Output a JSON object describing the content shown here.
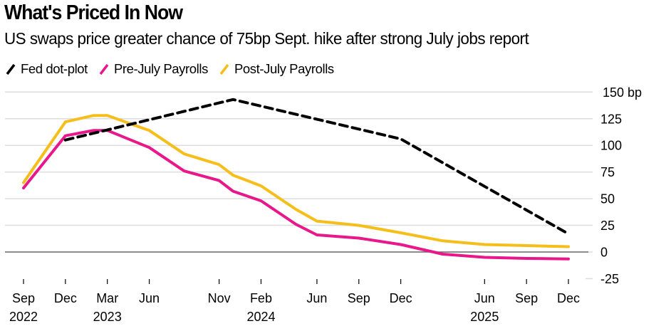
{
  "header": {
    "title": "What's Priced In Now",
    "subtitle": "US swaps price greater chance of 75bp Sept. hike after strong July jobs report"
  },
  "colors": {
    "fed": "#000000",
    "pre": "#E8178A",
    "post": "#F5BE1A",
    "grid": "#DDDDDD",
    "zero": "#666666"
  },
  "chart_data": {
    "type": "line",
    "title": "What's Priced In Now",
    "subtitle": "US swaps price greater chance of 75bp Sept. hike after strong July jobs report",
    "xlabel": "",
    "ylabel": "bp",
    "ylim": [
      -25,
      150
    ],
    "yticks": [
      -25,
      0,
      25,
      50,
      75,
      100,
      125,
      150
    ],
    "ytick_labels": [
      "-25",
      "0",
      "25",
      "50",
      "75",
      "100",
      "125",
      "150 bp"
    ],
    "y_axis_position": "right",
    "grid": true,
    "legend_position": "top-left",
    "x_start": "2022-09",
    "xlim_months": [
      0,
      39
    ],
    "xticks": [
      {
        "month": 0,
        "label": "Sep",
        "year": "2022"
      },
      {
        "month": 3,
        "label": "Dec",
        "year": ""
      },
      {
        "month": 6,
        "label": "Mar",
        "year": "2023"
      },
      {
        "month": 9,
        "label": "Jun",
        "year": ""
      },
      {
        "month": 14,
        "label": "Nov",
        "year": ""
      },
      {
        "month": 17,
        "label": "Feb",
        "year": "2024"
      },
      {
        "month": 21,
        "label": "Jun",
        "year": ""
      },
      {
        "month": 24,
        "label": "Sep",
        "year": ""
      },
      {
        "month": 27,
        "label": "Dec",
        "year": ""
      },
      {
        "month": 33,
        "label": "Jun",
        "year": "2025"
      },
      {
        "month": 36,
        "label": "Sep",
        "year": ""
      },
      {
        "month": 39,
        "label": "Dec",
        "year": ""
      }
    ],
    "series": [
      {
        "name": "Fed dot-plot",
        "key": "fed",
        "style": "dashed",
        "x_months": [
          3,
          15,
          27,
          39
        ],
        "x_dates": [
          "2022-12",
          "2023-12",
          "2024-12",
          "2025-12"
        ],
        "values": [
          105,
          143,
          106,
          17
        ]
      },
      {
        "name": "Pre-July Payrolls",
        "key": "pre",
        "style": "solid",
        "x_months": [
          0,
          3,
          5,
          6,
          9,
          11.5,
          14,
          15,
          17,
          19.5,
          21,
          24,
          27,
          30,
          33,
          36,
          39
        ],
        "x_dates": [
          "2022-09",
          "2022-12",
          "2023-02",
          "2023-03",
          "2023-06",
          "2023-08",
          "2023-11",
          "2023-12",
          "2024-02",
          "2024-04",
          "2024-06",
          "2024-09",
          "2024-12",
          "2025-03",
          "2025-06",
          "2025-09",
          "2025-12"
        ],
        "values": [
          60,
          109,
          114,
          114,
          98,
          76,
          67,
          57,
          48,
          26,
          16,
          13,
          7,
          -2,
          -5,
          -6,
          -6.5
        ]
      },
      {
        "name": "Post-July Payrolls",
        "key": "post",
        "style": "solid",
        "x_months": [
          0,
          3,
          5,
          6,
          9,
          11.5,
          14,
          15,
          17,
          19.5,
          21,
          24,
          27,
          30,
          33,
          36,
          39
        ],
        "x_dates": [
          "2022-09",
          "2022-12",
          "2023-02",
          "2023-03",
          "2023-06",
          "2023-08",
          "2023-11",
          "2023-12",
          "2024-02",
          "2024-04",
          "2024-06",
          "2024-09",
          "2024-12",
          "2025-03",
          "2025-06",
          "2025-09",
          "2025-12"
        ],
        "values": [
          65,
          122,
          128,
          128,
          114,
          92,
          82,
          72,
          62,
          40,
          29,
          25,
          18,
          10.5,
          7,
          6,
          5
        ]
      }
    ]
  },
  "legend": [
    {
      "label": "Fed dot-plot",
      "key": "fed"
    },
    {
      "label": "Pre-July Payrolls",
      "key": "pre"
    },
    {
      "label": "Post-July Payrolls",
      "key": "post"
    }
  ]
}
